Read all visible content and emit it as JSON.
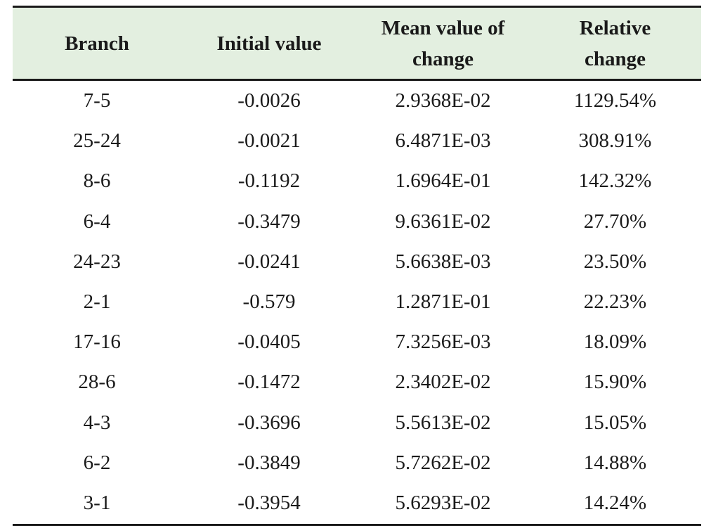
{
  "table": {
    "headers": [
      "Branch",
      "Initial value",
      "Mean value of\nchange",
      "Relative\nchange"
    ],
    "rows": [
      [
        "7-5",
        "-0.0026",
        "2.9368E-02",
        "1129.54%"
      ],
      [
        "25-24",
        "-0.0021",
        "6.4871E-03",
        "308.91%"
      ],
      [
        "8-6",
        "-0.1192",
        "1.6964E-01",
        "142.32%"
      ],
      [
        "6-4",
        "-0.3479",
        "9.6361E-02",
        "27.70%"
      ],
      [
        "24-23",
        "-0.0241",
        "5.6638E-03",
        "23.50%"
      ],
      [
        "2-1",
        "-0.579",
        "1.2871E-01",
        "22.23%"
      ],
      [
        "17-16",
        "-0.0405",
        "7.3256E-03",
        "18.09%"
      ],
      [
        "28-6",
        "-0.1472",
        "2.3402E-02",
        "15.90%"
      ],
      [
        "4-3",
        "-0.3696",
        "5.5613E-02",
        "15.05%"
      ],
      [
        "6-2",
        "-0.3849",
        "5.7262E-02",
        "14.88%"
      ],
      [
        "3-1",
        "-0.3954",
        "5.6293E-02",
        "14.24%"
      ]
    ]
  },
  "colors": {
    "header_background": "#e3efe0",
    "rules": "#1a1a1a",
    "text": "#1a1a1a"
  }
}
